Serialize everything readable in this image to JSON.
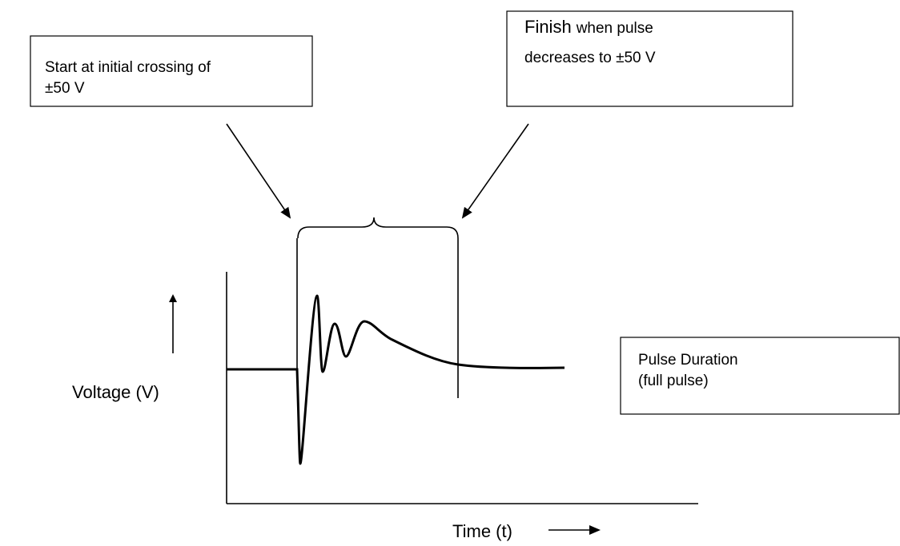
{
  "start_note": {
    "lines": [
      "Start at initial crossing of",
      "±50 V"
    ]
  },
  "finish_note": {
    "lead": "Finish",
    "lines": [
      "when pulse",
      "decreases to ±50 V"
    ]
  },
  "axes": {
    "y_label": "Voltage (V)",
    "x_label": "Time (t)"
  },
  "pulse_note": {
    "lines": [
      "Pulse Duration",
      "(full pulse)"
    ]
  }
}
